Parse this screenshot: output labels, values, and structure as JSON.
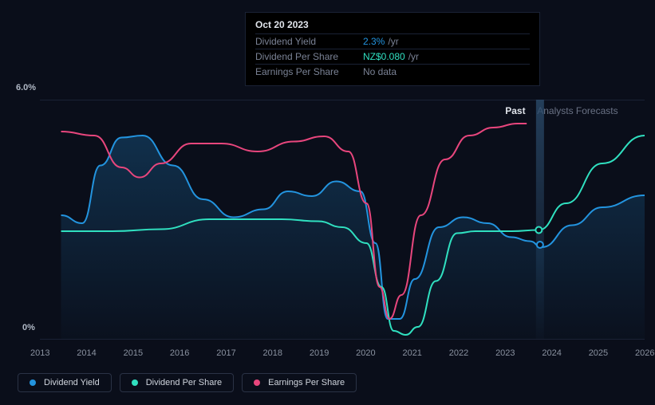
{
  "chart": {
    "type": "line",
    "background_color": "#0a0e1a",
    "grid_color": "#1a2235",
    "y_axis": {
      "max_label": "6.0%",
      "min_label": "0%",
      "max_value": 6.0,
      "min_value": 0
    },
    "x_axis": {
      "labels": [
        "2013",
        "2014",
        "2015",
        "2016",
        "2017",
        "2018",
        "2019",
        "2020",
        "2021",
        "2022",
        "2023",
        "2024",
        "2025",
        "2026"
      ],
      "start": 2013,
      "end": 2026,
      "past_pos": 0.809,
      "vline_pos": 0.827
    },
    "series": {
      "dividend_yield": {
        "label": "Dividend Yield",
        "color": "#2394df",
        "fill_opacity": 0.14,
        "points": [
          [
            0.035,
            3.1
          ],
          [
            0.07,
            2.9
          ],
          [
            0.1,
            4.35
          ],
          [
            0.135,
            5.05
          ],
          [
            0.17,
            5.1
          ],
          [
            0.22,
            4.35
          ],
          [
            0.27,
            3.5
          ],
          [
            0.32,
            3.05
          ],
          [
            0.37,
            3.25
          ],
          [
            0.41,
            3.7
          ],
          [
            0.45,
            3.58
          ],
          [
            0.49,
            3.95
          ],
          [
            0.53,
            3.7
          ],
          [
            0.555,
            2.4
          ],
          [
            0.575,
            0.5
          ],
          [
            0.595,
            0.5
          ],
          [
            0.62,
            1.5
          ],
          [
            0.66,
            2.8
          ],
          [
            0.7,
            3.05
          ],
          [
            0.74,
            2.9
          ],
          [
            0.78,
            2.55
          ],
          [
            0.81,
            2.45
          ],
          [
            0.83,
            2.3
          ],
          [
            0.88,
            2.85
          ],
          [
            0.93,
            3.3
          ],
          [
            1.0,
            3.6
          ]
        ],
        "marker_pos": 0.827,
        "marker_y": 2.36
      },
      "dividend_per_share": {
        "label": "Dividend Per Share",
        "color": "#30e0c0",
        "points": [
          [
            0.035,
            2.7
          ],
          [
            0.12,
            2.7
          ],
          [
            0.2,
            2.75
          ],
          [
            0.28,
            3.0
          ],
          [
            0.34,
            3.0
          ],
          [
            0.4,
            3.0
          ],
          [
            0.46,
            2.95
          ],
          [
            0.5,
            2.8
          ],
          [
            0.54,
            2.4
          ],
          [
            0.565,
            1.3
          ],
          [
            0.585,
            0.2
          ],
          [
            0.605,
            0.1
          ],
          [
            0.625,
            0.3
          ],
          [
            0.655,
            1.45
          ],
          [
            0.69,
            2.65
          ],
          [
            0.72,
            2.7
          ],
          [
            0.78,
            2.7
          ],
          [
            0.825,
            2.73
          ],
          [
            0.87,
            3.4
          ],
          [
            0.93,
            4.4
          ],
          [
            1.0,
            5.1
          ]
        ],
        "marker_pos": 0.825,
        "marker_y": 2.73
      },
      "earnings_per_share": {
        "label": "Earnings Per Share",
        "color": "#e8467d",
        "points": [
          [
            0.035,
            5.2
          ],
          [
            0.09,
            5.1
          ],
          [
            0.135,
            4.3
          ],
          [
            0.165,
            4.05
          ],
          [
            0.2,
            4.4
          ],
          [
            0.25,
            4.9
          ],
          [
            0.3,
            4.9
          ],
          [
            0.36,
            4.7
          ],
          [
            0.42,
            4.95
          ],
          [
            0.47,
            5.08
          ],
          [
            0.51,
            4.7
          ],
          [
            0.54,
            3.4
          ],
          [
            0.562,
            1.3
          ],
          [
            0.578,
            0.5
          ],
          [
            0.598,
            1.1
          ],
          [
            0.63,
            3.1
          ],
          [
            0.67,
            4.5
          ],
          [
            0.71,
            5.1
          ],
          [
            0.75,
            5.3
          ],
          [
            0.79,
            5.4
          ],
          [
            0.805,
            5.4
          ]
        ]
      }
    },
    "annotations": {
      "past": "Past",
      "forecast": "Analysts Forecasts"
    }
  },
  "tooltip": {
    "date": "Oct 20 2023",
    "rows": [
      {
        "label": "Dividend Yield",
        "value": "2.3%",
        "unit": "/yr",
        "color": "#2394df"
      },
      {
        "label": "Dividend Per Share",
        "value": "NZ$0.080",
        "unit": "/yr",
        "color": "#30e0c0"
      },
      {
        "label": "Earnings Per Share",
        "value": "No data",
        "unit": "",
        "color": "#7a8295"
      }
    ]
  },
  "legend": [
    {
      "label": "Dividend Yield",
      "color": "#2394df"
    },
    {
      "label": "Dividend Per Share",
      "color": "#30e0c0"
    },
    {
      "label": "Earnings Per Share",
      "color": "#e8467d"
    }
  ]
}
